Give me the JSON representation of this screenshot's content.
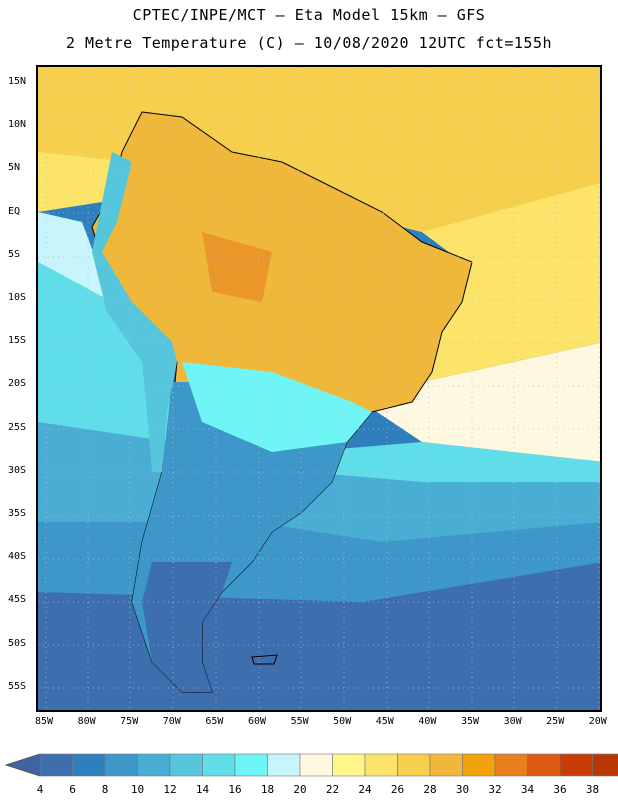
{
  "header": {
    "line1": "CPTEC/INPE/MCT –  Eta Model 15km – GFS",
    "line2": "2 Metre Temperature (C) – 10/08/2020 12UTC fct=155h"
  },
  "axes": {
    "lat_labels": [
      "15N",
      "10N",
      "5N",
      "EQ",
      "5S",
      "10S",
      "15S",
      "20S",
      "25S",
      "30S",
      "35S",
      "40S",
      "45S",
      "50S",
      "55S"
    ],
    "lon_labels": [
      "85W",
      "80W",
      "75W",
      "70W",
      "65W",
      "60W",
      "55W",
      "50W",
      "45W",
      "40W",
      "35W",
      "30W",
      "25W",
      "20W"
    ]
  },
  "colorbar": {
    "labels": [
      "4",
      "6",
      "8",
      "10",
      "12",
      "14",
      "16",
      "18",
      "20",
      "22",
      "24",
      "26",
      "28",
      "30",
      "32",
      "34",
      "36",
      "38"
    ],
    "colors": [
      "#3d6fae",
      "#2f7fbd",
      "#3d97c9",
      "#4aaed4",
      "#55c6dc",
      "#5fdde8",
      "#6ff5f5",
      "#c8f4fb",
      "#fff8e0",
      "#fff68a",
      "#fbe469",
      "#f6cf4c",
      "#f0b83a",
      "#f2a20b",
      "#e87e1c",
      "#dc5a12",
      "#c93c08",
      "#b73804"
    ],
    "under_color": "#3f63a3",
    "over_color": "#b02f05"
  }
}
